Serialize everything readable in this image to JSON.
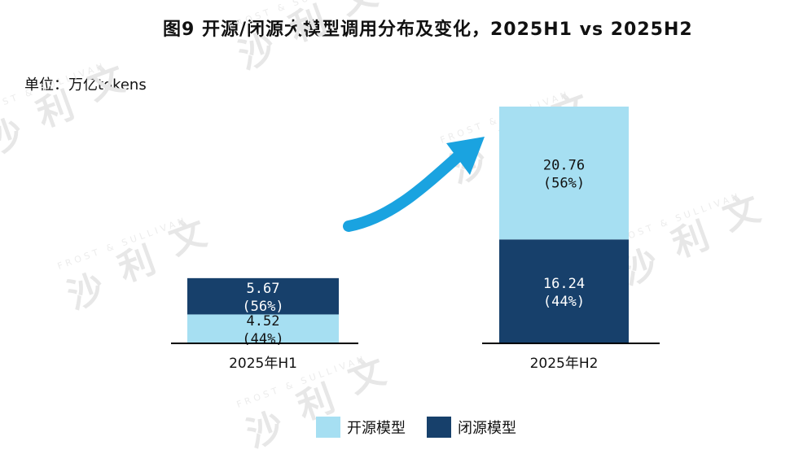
{
  "title": "图9 开源/闭源大模型调用分布及变化，2025H1 vs 2025H2",
  "unit_label": "单位：万亿tokens",
  "watermark": {
    "zh_a": "沙",
    "zh_b": "利",
    "zh_c": "文",
    "en": "FROST & SULLIVAN"
  },
  "colors": {
    "open": "#a6dff2",
    "closed": "#17406b",
    "arrow": "#1aa3e0",
    "axis": "#000000"
  },
  "chart_data": {
    "type": "bar",
    "stacked": true,
    "title": "图9 开源/闭源大模型调用分布及变化，2025H1 vs 2025H2",
    "ylabel": "万亿tokens",
    "categories": [
      "2025年H1",
      "2025年H2"
    ],
    "ylim": [
      0,
      37
    ],
    "series": [
      {
        "name": "闭源模型",
        "values": [
          5.67,
          16.24
        ],
        "labels": [
          "5.67",
          "16.24"
        ],
        "shares": [
          "(56%)",
          "(44%)"
        ]
      },
      {
        "name": "开源模型",
        "values": [
          4.52,
          20.76
        ],
        "labels": [
          "4.52",
          "20.76"
        ],
        "shares": [
          "(44%)",
          "(56%)"
        ]
      }
    ],
    "legend": [
      "开源模型",
      "闭源模型"
    ]
  }
}
